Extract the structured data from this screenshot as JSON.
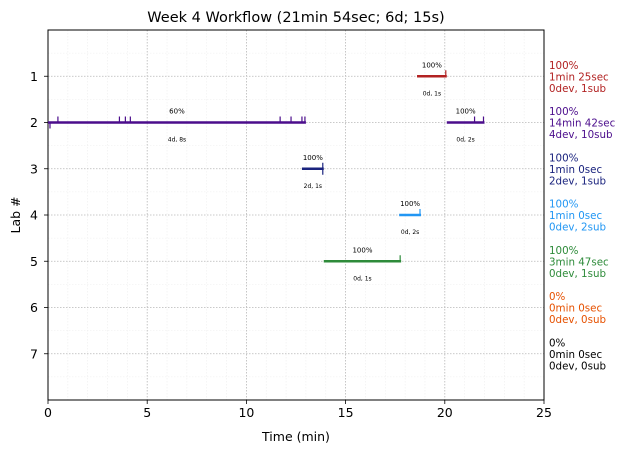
{
  "chart_data": {
    "type": "timeline",
    "title": "Week 4 Workflow (21min 54sec; 6d; 15s)",
    "xlabel": "Time (min)",
    "ylabel": "Lab #",
    "xlim": [
      0,
      25
    ],
    "ylim": [
      8,
      0
    ],
    "xticks": [
      0,
      5,
      10,
      15,
      20,
      25
    ],
    "yticks": [
      1,
      2,
      3,
      4,
      5,
      6,
      7
    ],
    "grid": true,
    "labs": [
      {
        "lab": 1,
        "color": "#b22222",
        "segments": [
          {
            "start": 18.6,
            "end": 20.1,
            "pct_label": "100%",
            "info_label": "0d, 1s",
            "ticks_up": [
              20.05
            ],
            "ticks_down": []
          }
        ],
        "summary": [
          "100%",
          "1min 25sec",
          "0dev, 1sub"
        ]
      },
      {
        "lab": 2,
        "color": "#4b0d8c",
        "segments": [
          {
            "start": 0.0,
            "end": 13.0,
            "pct_label": "60%",
            "info_label": "4d, 8s",
            "ticks_up": [
              0.5,
              3.6,
              3.9,
              4.15,
              11.7,
              12.25,
              12.8,
              12.95
            ],
            "ticks_down": [
              0.1
            ]
          },
          {
            "start": 20.1,
            "end": 22.0,
            "pct_label": "100%",
            "info_label": "0d, 2s",
            "ticks_up": [
              21.5,
              21.95
            ],
            "ticks_down": []
          }
        ],
        "summary": [
          "100%",
          "14min 42sec",
          "4dev, 10sub"
        ]
      },
      {
        "lab": 3,
        "color": "#1a237e",
        "segments": [
          {
            "start": 12.8,
            "end": 13.9,
            "pct_label": "100%",
            "info_label": "2d, 1s",
            "ticks_up": [
              13.85
            ],
            "ticks_down": [
              13.85
            ]
          }
        ],
        "summary": [
          "100%",
          "1min 0sec",
          "2dev, 1sub"
        ]
      },
      {
        "lab": 4,
        "color": "#2196f3",
        "segments": [
          {
            "start": 17.7,
            "end": 18.8,
            "pct_label": "100%",
            "info_label": "0d, 2s",
            "ticks_up": [
              18.75
            ],
            "ticks_down": []
          }
        ],
        "summary": [
          "100%",
          "1min 0sec",
          "0dev, 2sub"
        ]
      },
      {
        "lab": 5,
        "color": "#2e8b3a",
        "segments": [
          {
            "start": 13.9,
            "end": 17.8,
            "pct_label": "100%",
            "info_label": "0d, 1s",
            "ticks_up": [
              17.75
            ],
            "ticks_down": []
          }
        ],
        "summary": [
          "100%",
          "3min 47sec",
          "0dev, 1sub"
        ]
      },
      {
        "lab": 6,
        "color": "#e65100",
        "segments": [],
        "summary": [
          "0%",
          "0min 0sec",
          "0dev, 0sub"
        ]
      },
      {
        "lab": 7,
        "color": "#000000",
        "segments": [],
        "summary": [
          "0%",
          "0min 0sec",
          "0dev, 0sub"
        ]
      }
    ]
  }
}
